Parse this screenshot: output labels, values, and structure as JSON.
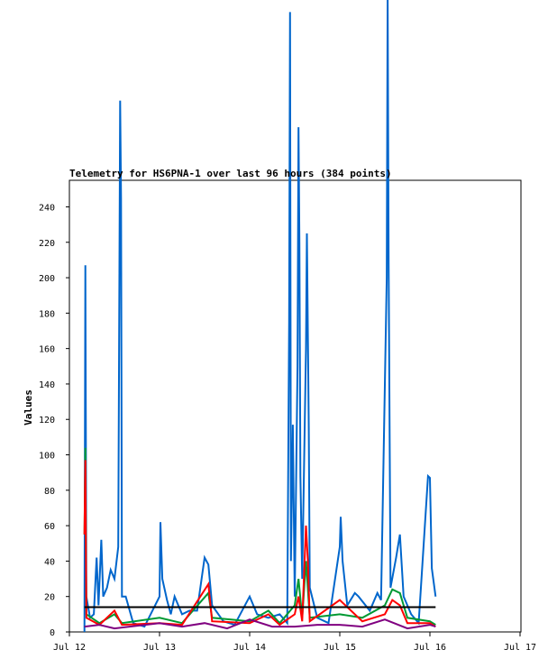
{
  "chart_data": {
    "type": "line",
    "title": "Telemetry for HS6PNA-1 over last 96 hours (384 points)",
    "xlabel": "",
    "ylabel": "Values",
    "xlim": [
      "2024-07-12",
      "2024-07-17"
    ],
    "ylim": [
      0,
      255
    ],
    "x_tick_labels": [
      "Jul 12",
      "Jul 13",
      "Jul 14",
      "Jul 15",
      "Jul 16",
      "Jul 17"
    ],
    "y_tick_labels": [
      "0",
      "20",
      "40",
      "60",
      "80",
      "100",
      "120",
      "140",
      "160",
      "180",
      "200",
      "220",
      "240"
    ],
    "grid": false,
    "legend": "none",
    "series": [
      {
        "color": "#0066cc",
        "points": [
          [
            "2024-07-12 04:00",
            0
          ],
          [
            "2024-07-12 04:15",
            207
          ],
          [
            "2024-07-12 04:30",
            20
          ],
          [
            "2024-07-12 05:30",
            8
          ],
          [
            "2024-07-12 06:30",
            10
          ],
          [
            "2024-07-12 07:15",
            42
          ],
          [
            "2024-07-12 07:45",
            15
          ],
          [
            "2024-07-12 08:30",
            52
          ],
          [
            "2024-07-12 09:00",
            20
          ],
          [
            "2024-07-12 10:00",
            25
          ],
          [
            "2024-07-12 11:00",
            35
          ],
          [
            "2024-07-12 12:00",
            30
          ],
          [
            "2024-07-12 13:00",
            48
          ],
          [
            "2024-07-12 13:30",
            300
          ],
          [
            "2024-07-12 13:45",
            245
          ],
          [
            "2024-07-12 14:00",
            20
          ],
          [
            "2024-07-12 15:00",
            20
          ],
          [
            "2024-07-12 17:00",
            5
          ],
          [
            "2024-07-12 20:00",
            3
          ],
          [
            "2024-07-13 00:00",
            20
          ],
          [
            "2024-07-13 00:15",
            62
          ],
          [
            "2024-07-13 00:45",
            30
          ],
          [
            "2024-07-13 02:00",
            18
          ],
          [
            "2024-07-13 03:00",
            10
          ],
          [
            "2024-07-13 04:00",
            20
          ],
          [
            "2024-07-13 06:00",
            10
          ],
          [
            "2024-07-13 08:00",
            12
          ],
          [
            "2024-07-13 10:00",
            12
          ],
          [
            "2024-07-13 12:00",
            42
          ],
          [
            "2024-07-13 13:00",
            38
          ],
          [
            "2024-07-13 14:00",
            15
          ],
          [
            "2024-07-13 17:00",
            6
          ],
          [
            "2024-07-13 20:00",
            4
          ],
          [
            "2024-07-14 00:00",
            20
          ],
          [
            "2024-07-14 02:00",
            10
          ],
          [
            "2024-07-14 05:00",
            8
          ],
          [
            "2024-07-14 08:00",
            10
          ],
          [
            "2024-07-14 10:00",
            5
          ],
          [
            "2024-07-14 10:30",
            175
          ],
          [
            "2024-07-14 10:45",
            350
          ],
          [
            "2024-07-14 11:00",
            40
          ],
          [
            "2024-07-14 11:30",
            117
          ],
          [
            "2024-07-14 12:00",
            20
          ],
          [
            "2024-07-14 12:45",
            150
          ],
          [
            "2024-07-14 13:00",
            285
          ],
          [
            "2024-07-14 13:15",
            220
          ],
          [
            "2024-07-14 13:30",
            88
          ],
          [
            "2024-07-14 14:00",
            30
          ],
          [
            "2024-07-14 15:00",
            160
          ],
          [
            "2024-07-14 15:15",
            225
          ],
          [
            "2024-07-14 15:45",
            115
          ],
          [
            "2024-07-14 16:00",
            25
          ],
          [
            "2024-07-14 18:00",
            8
          ],
          [
            "2024-07-14 21:00",
            5
          ],
          [
            "2024-07-15 00:00",
            48
          ],
          [
            "2024-07-15 00:15",
            65
          ],
          [
            "2024-07-15 00:45",
            40
          ],
          [
            "2024-07-15 02:00",
            15
          ],
          [
            "2024-07-15 04:00",
            22
          ],
          [
            "2024-07-15 05:00",
            20
          ],
          [
            "2024-07-15 08:00",
            12
          ],
          [
            "2024-07-15 10:00",
            22
          ],
          [
            "2024-07-15 11:00",
            18
          ],
          [
            "2024-07-15 12:30",
            200
          ],
          [
            "2024-07-15 12:45",
            360
          ],
          [
            "2024-07-15 13:00",
            208
          ],
          [
            "2024-07-15 13:30",
            25
          ],
          [
            "2024-07-15 15:00",
            42
          ],
          [
            "2024-07-15 16:00",
            55
          ],
          [
            "2024-07-15 17:00",
            20
          ],
          [
            "2024-07-15 19:00",
            10
          ],
          [
            "2024-07-15 21:00",
            5
          ],
          [
            "2024-07-15 23:30",
            88
          ],
          [
            "2024-07-16 00:00",
            87
          ],
          [
            "2024-07-16 00:30",
            36
          ],
          [
            "2024-07-16 01:30",
            20
          ]
        ]
      },
      {
        "color": "#009933",
        "points": [
          [
            "2024-07-12 04:00",
            55
          ],
          [
            "2024-07-12 04:15",
            104
          ],
          [
            "2024-07-12 04:30",
            10
          ],
          [
            "2024-07-12 08:00",
            5
          ],
          [
            "2024-07-12 12:00",
            10
          ],
          [
            "2024-07-12 14:00",
            5
          ],
          [
            "2024-07-13 00:00",
            8
          ],
          [
            "2024-07-13 06:00",
            5
          ],
          [
            "2024-07-13 13:00",
            22
          ],
          [
            "2024-07-13 14:00",
            8
          ],
          [
            "2024-07-14 00:00",
            6
          ],
          [
            "2024-07-14 05:00",
            12
          ],
          [
            "2024-07-14 08:00",
            5
          ],
          [
            "2024-07-14 12:00",
            15
          ],
          [
            "2024-07-14 13:00",
            30
          ],
          [
            "2024-07-14 14:00",
            8
          ],
          [
            "2024-07-14 15:00",
            40
          ],
          [
            "2024-07-14 16:00",
            8
          ],
          [
            "2024-07-15 00:00",
            10
          ],
          [
            "2024-07-15 06:00",
            8
          ],
          [
            "2024-07-15 12:00",
            15
          ],
          [
            "2024-07-15 14:00",
            24
          ],
          [
            "2024-07-15 16:00",
            22
          ],
          [
            "2024-07-15 18:00",
            8
          ],
          [
            "2024-07-16 00:00",
            6
          ],
          [
            "2024-07-16 01:30",
            4
          ]
        ]
      },
      {
        "color": "#ff0000",
        "points": [
          [
            "2024-07-12 04:00",
            55
          ],
          [
            "2024-07-12 04:15",
            97
          ],
          [
            "2024-07-12 04:30",
            8
          ],
          [
            "2024-07-12 08:00",
            4
          ],
          [
            "2024-07-12 12:00",
            12
          ],
          [
            "2024-07-12 14:00",
            4
          ],
          [
            "2024-07-13 00:00",
            5
          ],
          [
            "2024-07-13 06:00",
            4
          ],
          [
            "2024-07-13 13:00",
            27
          ],
          [
            "2024-07-13 14:00",
            6
          ],
          [
            "2024-07-14 00:00",
            5
          ],
          [
            "2024-07-14 05:00",
            10
          ],
          [
            "2024-07-14 08:00",
            4
          ],
          [
            "2024-07-14 12:00",
            10
          ],
          [
            "2024-07-14 13:00",
            20
          ],
          [
            "2024-07-14 14:00",
            6
          ],
          [
            "2024-07-14 15:00",
            60
          ],
          [
            "2024-07-14 15:30",
            40
          ],
          [
            "2024-07-14 16:00",
            6
          ],
          [
            "2024-07-15 00:00",
            18
          ],
          [
            "2024-07-15 06:00",
            6
          ],
          [
            "2024-07-15 12:00",
            10
          ],
          [
            "2024-07-15 14:00",
            18
          ],
          [
            "2024-07-15 16:00",
            15
          ],
          [
            "2024-07-15 18:00",
            5
          ],
          [
            "2024-07-16 00:00",
            5
          ],
          [
            "2024-07-16 01:30",
            3
          ]
        ]
      },
      {
        "color": "#800080",
        "points": [
          [
            "2024-07-12 04:00",
            3
          ],
          [
            "2024-07-12 08:00",
            4
          ],
          [
            "2024-07-12 12:00",
            2
          ],
          [
            "2024-07-12 16:00",
            3
          ],
          [
            "2024-07-13 00:00",
            5
          ],
          [
            "2024-07-13 06:00",
            3
          ],
          [
            "2024-07-13 12:00",
            5
          ],
          [
            "2024-07-13 18:00",
            2
          ],
          [
            "2024-07-14 00:00",
            7
          ],
          [
            "2024-07-14 06:00",
            3
          ],
          [
            "2024-07-14 12:00",
            3
          ],
          [
            "2024-07-14 18:00",
            4
          ],
          [
            "2024-07-15 00:00",
            4
          ],
          [
            "2024-07-15 06:00",
            3
          ],
          [
            "2024-07-15 12:00",
            7
          ],
          [
            "2024-07-15 18:00",
            2
          ],
          [
            "2024-07-16 00:00",
            4
          ],
          [
            "2024-07-16 01:30",
            3
          ]
        ]
      },
      {
        "color": "#000000",
        "points": [
          [
            "2024-07-12 04:00",
            14
          ],
          [
            "2024-07-13 00:00",
            14
          ],
          [
            "2024-07-14 00:00",
            14
          ],
          [
            "2024-07-15 00:00",
            14
          ],
          [
            "2024-07-16 00:00",
            14
          ],
          [
            "2024-07-16 01:30",
            14
          ]
        ]
      }
    ]
  }
}
